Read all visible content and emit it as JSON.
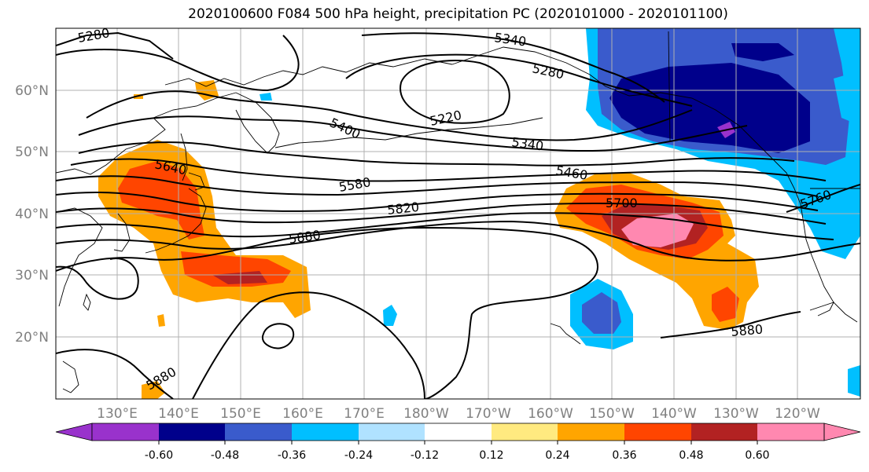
{
  "title": "2020100600 F084 500 hPa height, precipitation PC (2020101000 - 2020101100)",
  "x_ticks": [
    "130°E",
    "140°E",
    "150°E",
    "160°E",
    "170°E",
    "180°W",
    "170°W",
    "160°W",
    "150°W",
    "140°W",
    "130°W",
    "120°W"
  ],
  "y_ticks": [
    "60°N",
    "50°N",
    "40°N",
    "30°N",
    "20°N"
  ],
  "colorbar": {
    "colors": [
      "#9932cc",
      "#00008b",
      "#3a5bcc",
      "#00bfff",
      "#b0e2ff",
      "#ffffff",
      "#ffea80",
      "#ffa500",
      "#ff4500",
      "#b22222",
      "#ff88b0"
    ],
    "labels": [
      "-0.60",
      "-0.48",
      "-0.36",
      "-0.24",
      "-0.12",
      "0.12",
      "0.24",
      "0.36",
      "0.48",
      "0.60"
    ]
  },
  "contour_labels": [
    "5280",
    "5340",
    "5280",
    "5220",
    "5400",
    "5340",
    "5640",
    "5460",
    "5580",
    "5820",
    "5700",
    "5880",
    "5760",
    "5880",
    "5880"
  ],
  "colors": {
    "coast": "#000000",
    "grid": "#b0b0b0",
    "contour": "#000000"
  }
}
